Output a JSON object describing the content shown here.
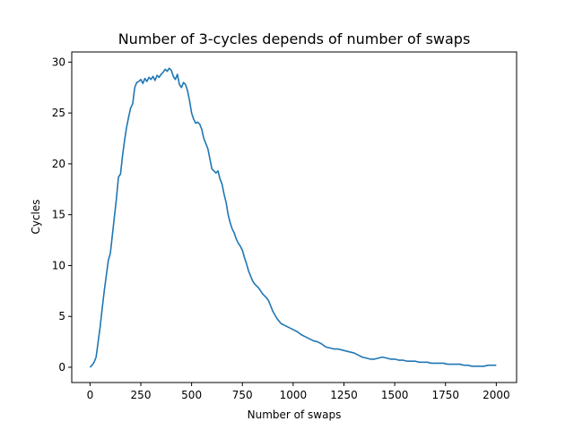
{
  "chart_data": {
    "type": "line",
    "title": "Number of 3-cycles depends of number of swaps",
    "xlabel": "Number of swaps",
    "ylabel": "Cycles",
    "xlim": [
      -90,
      2100
    ],
    "ylim": [
      -1.5,
      31
    ],
    "xticks": [
      0,
      250,
      500,
      750,
      1000,
      1250,
      1500,
      1750,
      2000
    ],
    "yticks": [
      0,
      5,
      10,
      15,
      20,
      25,
      30
    ],
    "grid": false,
    "series": [
      {
        "color": "#1f77b4",
        "x": [
          0,
          10,
          20,
          30,
          40,
          50,
          60,
          70,
          80,
          90,
          100,
          110,
          120,
          130,
          140,
          150,
          160,
          170,
          180,
          190,
          200,
          210,
          220,
          230,
          240,
          250,
          260,
          270,
          280,
          290,
          300,
          310,
          320,
          330,
          340,
          350,
          360,
          370,
          380,
          390,
          400,
          410,
          420,
          430,
          440,
          450,
          460,
          470,
          480,
          490,
          500,
          510,
          520,
          530,
          540,
          550,
          560,
          570,
          580,
          590,
          600,
          610,
          620,
          630,
          640,
          650,
          660,
          670,
          680,
          690,
          700,
          710,
          720,
          730,
          740,
          750,
          760,
          770,
          780,
          790,
          800,
          810,
          820,
          830,
          840,
          850,
          860,
          870,
          880,
          890,
          900,
          920,
          940,
          960,
          980,
          1000,
          1020,
          1040,
          1060,
          1080,
          1100,
          1120,
          1140,
          1160,
          1180,
          1200,
          1220,
          1240,
          1260,
          1280,
          1300,
          1320,
          1340,
          1360,
          1380,
          1400,
          1420,
          1440,
          1460,
          1480,
          1500,
          1520,
          1540,
          1560,
          1580,
          1600,
          1620,
          1640,
          1660,
          1680,
          1700,
          1720,
          1740,
          1760,
          1780,
          1800,
          1820,
          1840,
          1860,
          1880,
          1900,
          1920,
          1940,
          1960,
          1980,
          2000
        ],
        "values": [
          0,
          0.2,
          0.5,
          1.0,
          2.5,
          4.0,
          5.8,
          7.5,
          9.0,
          10.5,
          11.2,
          13.0,
          14.8,
          16.6,
          18.7,
          19.0,
          20.8,
          22.3,
          23.6,
          24.6,
          25.5,
          25.9,
          27.5,
          28.0,
          28.1,
          28.3,
          27.9,
          28.4,
          28.1,
          28.5,
          28.3,
          28.6,
          28.2,
          28.7,
          28.5,
          28.8,
          29.0,
          29.3,
          29.1,
          29.4,
          29.2,
          28.6,
          28.3,
          28.8,
          27.8,
          27.5,
          28.0,
          27.8,
          27.2,
          26.2,
          25.0,
          24.4,
          24.0,
          24.1,
          23.9,
          23.4,
          22.5,
          22.0,
          21.5,
          20.5,
          19.5,
          19.3,
          19.1,
          19.3,
          18.5,
          18.0,
          17.0,
          16.2,
          15.0,
          14.2,
          13.6,
          13.2,
          12.6,
          12.2,
          11.9,
          11.5,
          10.8,
          10.2,
          9.5,
          9.0,
          8.5,
          8.2,
          8.0,
          7.8,
          7.5,
          7.2,
          7.0,
          6.8,
          6.5,
          6.0,
          5.5,
          4.8,
          4.3,
          4.1,
          3.9,
          3.7,
          3.5,
          3.2,
          3.0,
          2.8,
          2.6,
          2.5,
          2.3,
          2.0,
          1.9,
          1.8,
          1.8,
          1.7,
          1.6,
          1.5,
          1.4,
          1.2,
          1.0,
          0.9,
          0.8,
          0.8,
          0.9,
          1.0,
          0.9,
          0.8,
          0.8,
          0.7,
          0.7,
          0.6,
          0.6,
          0.6,
          0.5,
          0.5,
          0.5,
          0.4,
          0.4,
          0.4,
          0.4,
          0.3,
          0.3,
          0.3,
          0.3,
          0.2,
          0.2,
          0.1,
          0.1,
          0.1,
          0.1,
          0.2,
          0.2,
          0.2
        ]
      }
    ]
  }
}
